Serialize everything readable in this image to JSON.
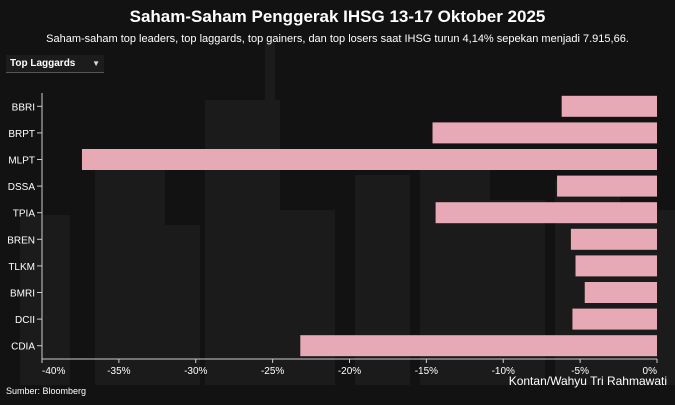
{
  "header": {
    "title": "Saham-Saham Penggerak IHSG 13-17 Oktober 2025",
    "subtitle": "Saham-saham top leaders, top laggards, top gainers, dan top losers saat IHSG turun 4,14% sepekan menjadi 7.915,66."
  },
  "selector": {
    "selected": "Top Laggards",
    "icon": "chevron-down-icon"
  },
  "footer": {
    "source": "Sumber: Bloomberg",
    "credit": "Kontan/Wahyu Tri Rahmawati"
  },
  "colors": {
    "bar": "#e8a9b6",
    "background": "#121212",
    "text": "#ffffff"
  },
  "chart_data": {
    "type": "bar",
    "orientation": "horizontal",
    "categories": [
      "BBRI",
      "BRPT",
      "MLPT",
      "DSSA",
      "TPIA",
      "BREN",
      "TLKM",
      "BMRI",
      "DCII",
      "CDIA"
    ],
    "values": [
      -6.2,
      -14.6,
      -37.4,
      -6.5,
      -14.4,
      -5.6,
      -5.3,
      -4.7,
      -5.5,
      -23.2
    ],
    "xlim": [
      -40,
      0
    ],
    "xticks": [
      -40,
      -35,
      -30,
      -25,
      -20,
      -15,
      -10,
      -5,
      0
    ],
    "xtick_labels": [
      "-40%",
      "-35%",
      "-30%",
      "-25%",
      "-20%",
      "-15%",
      "-10%",
      "-5%",
      "0%"
    ],
    "grid": false,
    "legend": "none"
  }
}
